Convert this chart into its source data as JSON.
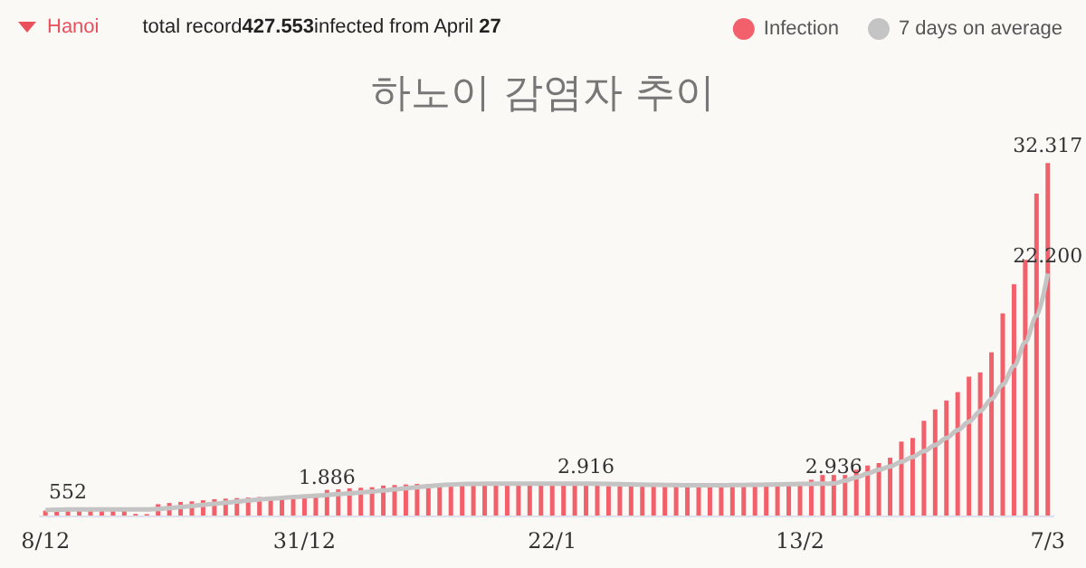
{
  "chart_data": {
    "type": "bar",
    "title": "하노이 감염자 추이",
    "annotations": [
      "Hanoi",
      "total record427.553infected from April 27"
    ],
    "categories": [
      "8/12",
      null,
      null,
      null,
      null,
      null,
      null,
      null,
      null,
      null,
      null,
      null,
      null,
      null,
      null,
      null,
      null,
      null,
      null,
      null,
      null,
      null,
      null,
      "31/12",
      null,
      null,
      null,
      null,
      null,
      null,
      null,
      null,
      null,
      null,
      null,
      null,
      null,
      null,
      null,
      null,
      null,
      null,
      null,
      null,
      null,
      "22/1",
      null,
      null,
      null,
      null,
      null,
      null,
      null,
      null,
      null,
      null,
      null,
      null,
      null,
      null,
      null,
      null,
      null,
      null,
      null,
      null,
      null,
      "13/2",
      null,
      null,
      null,
      null,
      null,
      null,
      null,
      null,
      null,
      null,
      null,
      null,
      null,
      null,
      null,
      null,
      null,
      null,
      null,
      null,
      null,
      "7/3"
    ],
    "legend": "top right",
    "marker": "none",
    "series": [
      {
        "name": "Infection",
        "color": "#f2606b",
        "values": [
          450,
          470,
          480,
          500,
          480,
          520,
          540,
          500,
          150,
          130,
          1040,
          1150,
          1250,
          1300,
          1400,
          1500,
          1550,
          1600,
          1650,
          1700,
          1700,
          1750,
          1800,
          1750,
          1800,
          2350,
          2400,
          2500,
          2550,
          2600,
          2750,
          2800,
          2850,
          2900,
          2900,
          2900,
          2900,
          2950,
          2950,
          2950,
          2950,
          2950,
          2950,
          2900,
          2900,
          2900,
          2900,
          2900,
          2900,
          2900,
          2700,
          2700,
          2700,
          2700,
          2700,
          2700,
          2700,
          2700,
          2750,
          2750,
          2750,
          2750,
          2750,
          2750,
          2750,
          2750,
          2750,
          2750,
          3280,
          3720,
          3720,
          3720,
          4210,
          4590,
          4810,
          5300,
          6780,
          7110,
          8690,
          9730,
          10550,
          11320,
          12740,
          13120,
          14980,
          18530,
          21210,
          23450,
          29520,
          32317
        ],
        "value_labels": [
          null,
          null,
          null,
          null,
          null,
          null,
          null,
          null,
          null,
          null,
          null,
          null,
          null,
          null,
          null,
          null,
          null,
          null,
          null,
          null,
          null,
          null,
          null,
          null,
          null,
          null,
          null,
          null,
          null,
          null,
          null,
          null,
          null,
          null,
          null,
          null,
          null,
          null,
          null,
          null,
          null,
          null,
          null,
          null,
          null,
          null,
          null,
          null,
          null,
          null,
          null,
          null,
          null,
          null,
          null,
          null,
          null,
          null,
          null,
          null,
          null,
          null,
          null,
          null,
          null,
          null,
          null,
          null,
          null,
          null,
          null,
          null,
          null,
          null,
          null,
          null,
          null,
          null,
          null,
          null,
          null,
          null,
          null,
          null,
          null,
          null,
          null,
          null,
          null,
          "32.317"
        ]
      },
      {
        "name": "7 days on average",
        "type": "line",
        "color": "#c4c4c4",
        "values": [
          500,
          530,
          552,
          560,
          560,
          560,
          560,
          560,
          560,
          560,
          600,
          680,
          780,
          880,
          980,
          1080,
          1180,
          1280,
          1380,
          1470,
          1550,
          1620,
          1700,
          1760,
          1820,
          1886,
          1960,
          2040,
          2120,
          2200,
          2300,
          2400,
          2500,
          2600,
          2700,
          2780,
          2850,
          2890,
          2910,
          2916,
          2916,
          2916,
          2916,
          2916,
          2916,
          2916,
          2916,
          2916,
          2916,
          2916,
          2900,
          2880,
          2860,
          2840,
          2820,
          2800,
          2790,
          2780,
          2780,
          2780,
          2780,
          2790,
          2800,
          2820,
          2840,
          2860,
          2880,
          2900,
          2910,
          2920,
          2936,
          3200,
          3500,
          3850,
          4210,
          4490,
          4930,
          5370,
          5900,
          6460,
          7110,
          7830,
          8600,
          9570,
          10680,
          12000,
          13700,
          15900,
          18300,
          22200
        ],
        "value_labels": [
          null,
          null,
          "552",
          null,
          null,
          null,
          null,
          null,
          null,
          null,
          null,
          null,
          null,
          null,
          null,
          null,
          null,
          null,
          null,
          null,
          null,
          null,
          null,
          null,
          null,
          "1.886",
          null,
          null,
          null,
          null,
          null,
          null,
          null,
          null,
          null,
          null,
          null,
          null,
          null,
          null,
          null,
          null,
          null,
          null,
          null,
          null,
          null,
          null,
          "2.916",
          null,
          null,
          null,
          null,
          null,
          null,
          null,
          null,
          null,
          null,
          null,
          null,
          null,
          null,
          null,
          null,
          null,
          null,
          null,
          null,
          null,
          "2.936",
          null,
          null,
          null,
          null,
          null,
          null,
          null,
          null,
          null,
          null,
          null,
          null,
          null,
          null,
          null,
          null,
          null,
          null,
          "22.200"
        ]
      }
    ]
  }
}
